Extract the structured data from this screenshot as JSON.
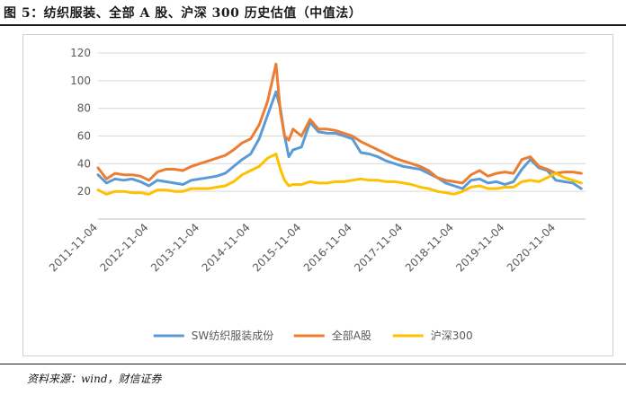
{
  "figure": {
    "title": "图 5：纺织服装、全部 A 股、沪深 300 历史估值（中值法）",
    "source": "资料来源：wind，财信证券"
  },
  "chart_data": {
    "type": "line",
    "title": "",
    "xlabel": "",
    "ylabel": "",
    "ylim": [
      0,
      120
    ],
    "yticks": [
      20,
      40,
      60,
      80,
      100,
      120
    ],
    "x_tick_labels": [
      "2011-11-04",
      "2012-11-04",
      "2013-11-04",
      "2014-11-04",
      "2015-11-04",
      "2016-11-04",
      "2017-11-04",
      "2018-11-04",
      "2019-11-04",
      "2020-11-04"
    ],
    "x_range": [
      "2011-11",
      "2021-06"
    ],
    "grid": "horizontal",
    "legend_position": "bottom",
    "colors": {
      "sw_textile": "#5b9bd5",
      "all_a": "#ed7d31",
      "hs300": "#ffc000"
    },
    "x": [
      "2011-11",
      "2012-01",
      "2012-03",
      "2012-05",
      "2012-07",
      "2012-09",
      "2012-11",
      "2013-01",
      "2013-03",
      "2013-05",
      "2013-07",
      "2013-09",
      "2013-11",
      "2014-01",
      "2014-03",
      "2014-05",
      "2014-07",
      "2014-09",
      "2014-11",
      "2015-01",
      "2015-03",
      "2015-05",
      "2015-06",
      "2015-07",
      "2015-08",
      "2015-09",
      "2015-11",
      "2016-01",
      "2016-03",
      "2016-05",
      "2016-07",
      "2016-09",
      "2016-11",
      "2017-01",
      "2017-03",
      "2017-05",
      "2017-07",
      "2017-09",
      "2017-11",
      "2018-01",
      "2018-03",
      "2018-05",
      "2018-07",
      "2018-09",
      "2018-11",
      "2019-01",
      "2019-03",
      "2019-05",
      "2019-07",
      "2019-09",
      "2019-11",
      "2020-01",
      "2020-03",
      "2020-05",
      "2020-07",
      "2020-09",
      "2020-11",
      "2021-01",
      "2021-03",
      "2021-05"
    ],
    "series": [
      {
        "name": "SW纺织服装成份",
        "key": "sw_textile",
        "values": [
          32,
          26,
          29,
          28,
          29,
          27,
          24,
          28,
          27,
          26,
          25,
          28,
          29,
          30,
          31,
          33,
          38,
          43,
          47,
          58,
          75,
          92,
          80,
          60,
          45,
          50,
          52,
          70,
          63,
          62,
          62,
          60,
          58,
          48,
          47,
          45,
          42,
          40,
          38,
          37,
          36,
          33,
          30,
          26,
          24,
          22,
          28,
          29,
          26,
          27,
          25,
          27,
          36,
          43,
          37,
          35,
          28,
          27,
          26,
          22
        ]
      },
      {
        "name": "全部A股",
        "key": "all_a",
        "values": [
          37,
          29,
          33,
          32,
          32,
          31,
          28,
          34,
          36,
          36,
          35,
          38,
          40,
          42,
          44,
          46,
          50,
          55,
          58,
          68,
          85,
          112,
          78,
          60,
          57,
          65,
          60,
          72,
          65,
          65,
          64,
          62,
          60,
          56,
          53,
          50,
          47,
          44,
          42,
          40,
          38,
          35,
          30,
          28,
          27,
          26,
          32,
          35,
          31,
          33,
          34,
          33,
          43,
          45,
          38,
          36,
          33,
          34,
          34,
          33
        ]
      },
      {
        "name": "沪深300",
        "key": "hs300",
        "values": [
          21,
          18,
          20,
          20,
          19,
          19,
          18,
          21,
          21,
          20,
          20,
          22,
          22,
          22,
          23,
          24,
          27,
          32,
          35,
          38,
          44,
          47,
          36,
          28,
          24,
          25,
          25,
          27,
          26,
          26,
          27,
          27,
          28,
          29,
          28,
          28,
          27,
          27,
          26,
          25,
          23,
          22,
          20,
          19,
          18,
          20,
          23,
          24,
          22,
          22,
          23,
          23,
          27,
          28,
          27,
          30,
          33,
          30,
          28,
          26
        ]
      }
    ]
  }
}
